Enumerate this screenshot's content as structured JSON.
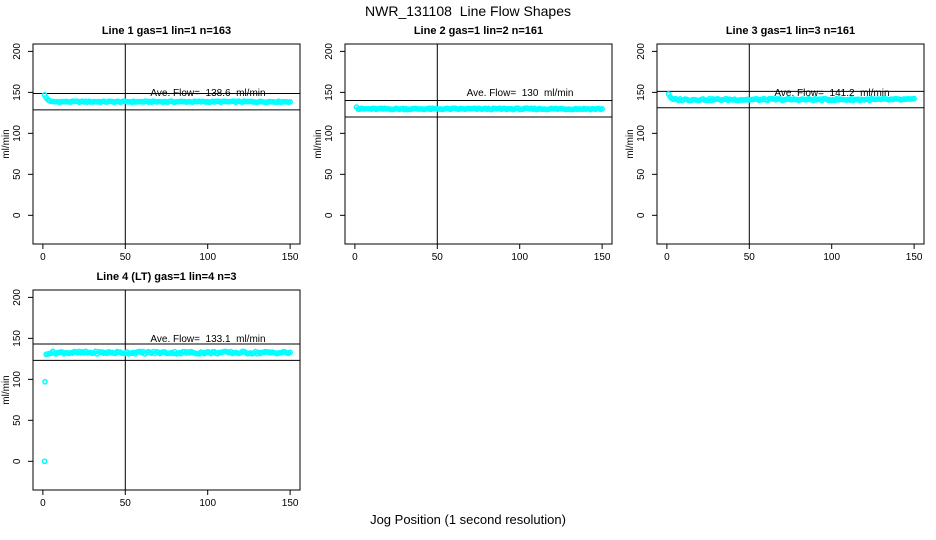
{
  "chart_data": {
    "type": "scatter",
    "title": "NWR_131108  Line Flow Shapes",
    "xlabel": "Jog Position (1 second resolution)",
    "ylabel": "ml/min",
    "x_ticks": [
      0,
      50,
      100,
      150
    ],
    "y_ticks": [
      0,
      50,
      100,
      150,
      200
    ],
    "xlim": [
      -6,
      156
    ],
    "ylim": [
      -35,
      209
    ],
    "grid": false,
    "legend": "none",
    "point_color": "#00ffff",
    "axis_color": "#000000",
    "plots": [
      {
        "title": "Line 1 gas=1 lin=1 n=163",
        "n": 163,
        "ave_flow": 138.6,
        "annotation": {
          "x": 100,
          "y": 148,
          "text": "Ave. Flow=  138.6  ml/min"
        },
        "ref_lines_y": [
          148.6,
          128.6
        ],
        "vline_x": 50,
        "series": {
          "x_start": 1,
          "x_end": 150,
          "flat_y": 138.6,
          "noise": 0.7,
          "transient": [
            [
              1,
              147
            ],
            [
              2,
              143.5
            ],
            [
              3,
              141
            ],
            [
              4,
              139.8
            ]
          ],
          "outliers": []
        }
      },
      {
        "title": "Line 2 gas=1 lin=2 n=161",
        "n": 161,
        "ave_flow": 130,
        "annotation": {
          "x": 100,
          "y": 148,
          "text": "Ave. Flow=  130  ml/min"
        },
        "ref_lines_y": [
          140,
          120
        ],
        "vline_x": 50,
        "series": {
          "x_start": 1,
          "x_end": 150,
          "flat_y": 129.8,
          "noise": 0.9,
          "transient": [
            [
              1,
              132
            ]
          ],
          "outliers": []
        }
      },
      {
        "title": "Line 3 gas=1 lin=3 n=161",
        "n": 161,
        "ave_flow": 141.2,
        "annotation": {
          "x": 100,
          "y": 148,
          "text": "Ave. Flow=  141.2  ml/min"
        },
        "ref_lines_y": [
          151.2,
          131.2
        ],
        "vline_x": 50,
        "series": {
          "x_start": 1,
          "x_end": 150,
          "flat_y": 141.2,
          "noise": 1.2,
          "transient": [
            [
              1,
              148
            ],
            [
              2,
              144.5
            ],
            [
              3,
              142.5
            ]
          ],
          "outliers": []
        }
      },
      {
        "title": "Line 4 (LT) gas=1 lin=4 n=3",
        "n": 3,
        "ave_flow": 133.1,
        "annotation": {
          "x": 100,
          "y": 148,
          "text": "Ave. Flow=  133.1  ml/min"
        },
        "ref_lines_y": [
          143.1,
          123.1
        ],
        "vline_x": 50,
        "series": {
          "x_start": 2,
          "x_end": 150,
          "flat_y": 132.6,
          "noise": 1.6,
          "transient": [
            [
              2,
              130.5
            ],
            [
              3,
              131
            ]
          ],
          "outliers": [
            [
              1,
              0
            ],
            [
              1.3,
              97
            ]
          ]
        }
      }
    ]
  }
}
